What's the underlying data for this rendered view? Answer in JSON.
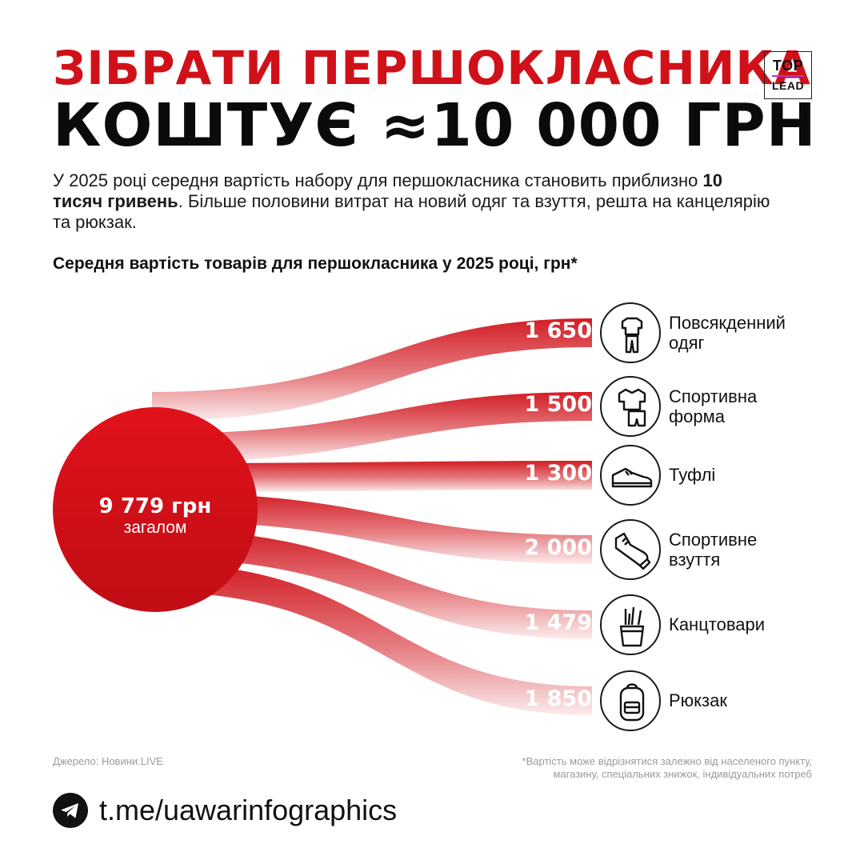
{
  "header": {
    "title_line1": "ЗІБРАТИ ПЕРШОКЛАСНИКА",
    "title_line2": "КОШТУЄ ≈10 000 ГРН",
    "logo_top": "TOP",
    "logo_bottom": "LEAD"
  },
  "intro": {
    "part1": "У 2025 році середня вартість набору для першокласника становить приблизно ",
    "bold": "10 тисяч гривень",
    "part2": ". Більше половини витрат на новий одяг та взуття,  решта на канцелярію та рюкзак."
  },
  "colors": {
    "accent": "#d01119",
    "text": "#111111",
    "muted": "#9a9a9a"
  },
  "chart_data": {
    "type": "flow",
    "title": "Середня вартість товарів для першокласника у 2025 році, грн*",
    "total": {
      "value": 9779,
      "label": "9 779 грн",
      "sublabel": "загалом"
    },
    "items": [
      {
        "name": "Повсякденний одяг",
        "line1": "Повсякденний",
        "line2": "одяг",
        "value": 1650,
        "label": "1 650",
        "icon": "clothes-icon"
      },
      {
        "name": "Спортивна форма",
        "line1": "Спортивна",
        "line2": "форма",
        "value": 1500,
        "label": "1 500",
        "icon": "sport-uniform-icon"
      },
      {
        "name": "Туфлі",
        "line1": "Туфлі",
        "line2": "",
        "value": 1300,
        "label": "1 300",
        "icon": "shoe-icon"
      },
      {
        "name": "Спортивне взуття",
        "line1": "Спортивне",
        "line2": "взуття",
        "value": 2000,
        "label": "2 000",
        "icon": "sneaker-icon"
      },
      {
        "name": "Канцтовари",
        "line1": "Канцтовари",
        "line2": "",
        "value": 1479,
        "label": "1 479",
        "icon": "stationery-icon"
      },
      {
        "name": "Рюкзак",
        "line1": "Рюкзак",
        "line2": "",
        "value": 1850,
        "label": "1 850",
        "icon": "backpack-icon"
      }
    ]
  },
  "footer": {
    "source": "Джерело: Новини.LIVE",
    "footnote_line1": "*Вартість може відрізнятися залежно від населеного пункту,",
    "footnote_line2": "магазину, спеціальних знижок, індивідуальних потреб",
    "link": "t.me/uawarinfographics",
    "link_icon": "telegram-icon"
  }
}
